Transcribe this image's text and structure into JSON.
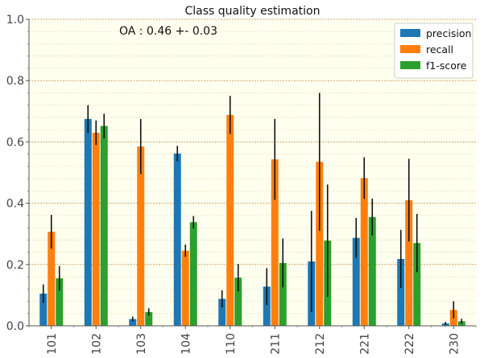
{
  "chart_data": {
    "type": "bar",
    "title": "Class quality estimation",
    "annotation": "OA : 0.46 +- 0.03",
    "xlabel": "",
    "ylabel": "",
    "ylim": [
      0,
      1.0
    ],
    "yticks": [
      "0.0",
      "0.2",
      "0.4",
      "0.6",
      "0.8",
      "1.0"
    ],
    "ytick_values": [
      0,
      0.2,
      0.4,
      0.6,
      0.8,
      1.0
    ],
    "grid": true,
    "legend_position": "top-right",
    "categories": [
      "101",
      "102",
      "103",
      "104",
      "110",
      "211",
      "212",
      "221",
      "222",
      "230"
    ],
    "series": [
      {
        "name": "precision",
        "color": "#1f77b4",
        "values": [
          0.105,
          0.675,
          0.022,
          0.562,
          0.088,
          0.128,
          0.21,
          0.287,
          0.218,
          0.008
        ],
        "errors": [
          0.03,
          0.045,
          0.008,
          0.025,
          0.028,
          0.06,
          0.165,
          0.065,
          0.095,
          0.005
        ]
      },
      {
        "name": "recall",
        "color": "#ff7f0e",
        "values": [
          0.307,
          0.63,
          0.585,
          0.245,
          0.688,
          0.543,
          0.535,
          0.482,
          0.41,
          0.052
        ],
        "errors": [
          0.055,
          0.04,
          0.09,
          0.02,
          0.062,
          0.132,
          0.225,
          0.068,
          0.135,
          0.028
        ]
      },
      {
        "name": "f1-score",
        "color": "#2ca02c",
        "values": [
          0.155,
          0.652,
          0.045,
          0.338,
          0.157,
          0.205,
          0.278,
          0.355,
          0.27,
          0.015
        ],
        "errors": [
          0.04,
          0.04,
          0.012,
          0.02,
          0.045,
          0.08,
          0.183,
          0.06,
          0.095,
          0.008
        ]
      }
    ]
  }
}
